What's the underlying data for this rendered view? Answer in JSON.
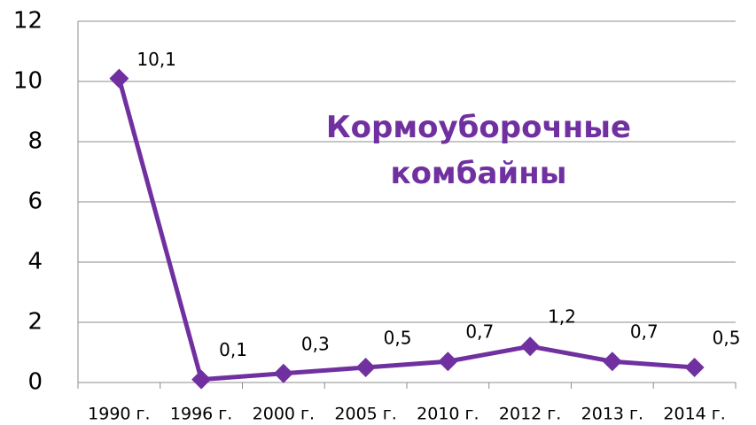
{
  "chart_data": {
    "type": "line",
    "title": "Кормоуборочные комбайны",
    "title_color": "#7030a0",
    "categories": [
      "1990 г.",
      "1996 г.",
      "2000 г.",
      "2005 г.",
      "2010 г.",
      "2012 г.",
      "2013 г.",
      "2014 г."
    ],
    "series": [
      {
        "name": "Кормоуборочные комбайны",
        "color": "#7030a0",
        "values": [
          10.1,
          0.1,
          0.3,
          0.5,
          0.7,
          1.2,
          0.7,
          0.5
        ],
        "value_labels": [
          "10,1",
          "0,1",
          "0,3",
          "0,5",
          "0,7",
          "1,2",
          "0,7",
          "0,5"
        ]
      }
    ],
    "ylim": [
      0,
      12
    ],
    "yticks": [
      0,
      2,
      4,
      6,
      8,
      10,
      12
    ],
    "grid": true
  }
}
